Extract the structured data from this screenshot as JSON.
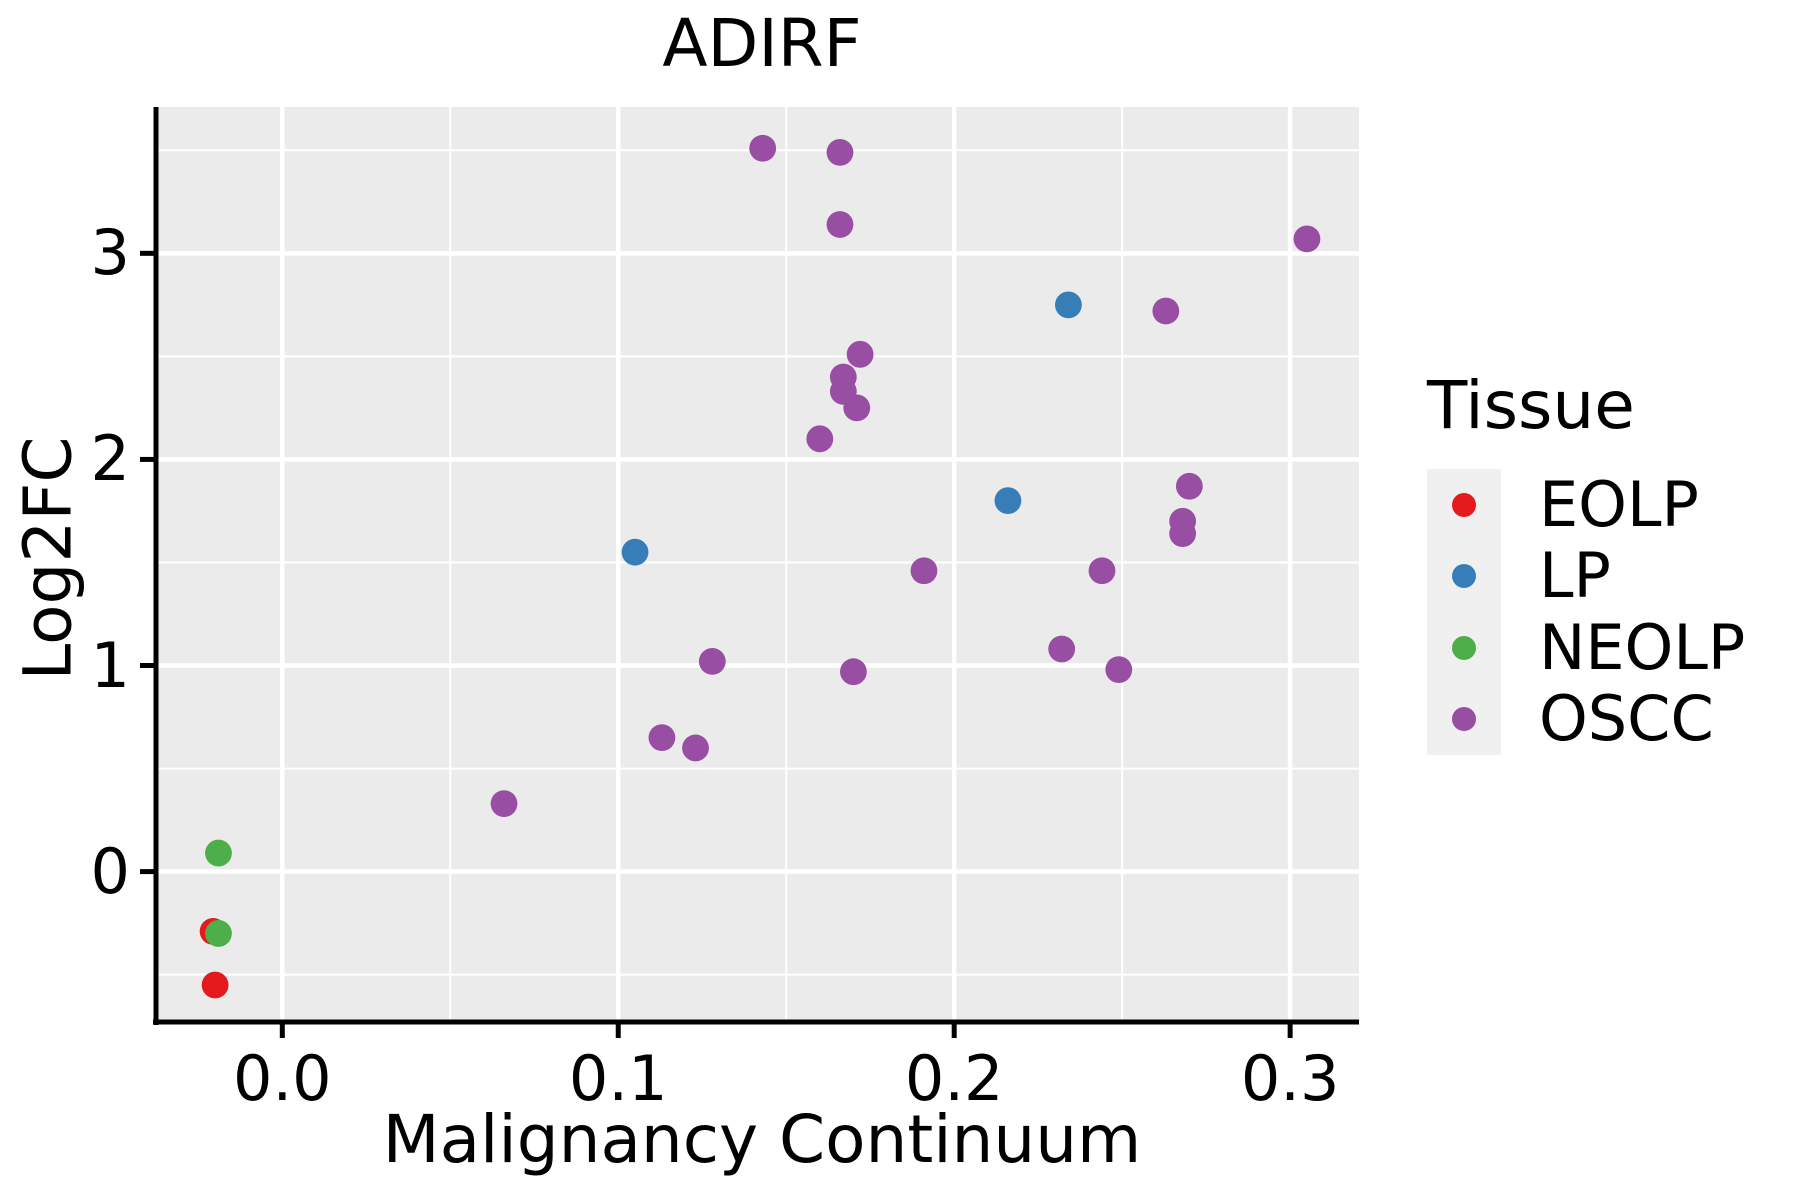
{
  "figure": {
    "title": "ADIRF",
    "background": "#ffffff"
  },
  "chart_data": {
    "type": "scatter",
    "title": "ADIRF",
    "xlabel": "Malignancy Continuum",
    "ylabel": "Log2FC",
    "xlim": [
      -0.037,
      0.3205
    ],
    "ylim": [
      -0.72,
      3.71
    ],
    "x_ticks": [
      0.0,
      0.1,
      0.2,
      0.3
    ],
    "x_tick_labels": [
      "0.0",
      "0.1",
      "0.2",
      "0.3"
    ],
    "y_ticks": [
      0,
      1,
      2,
      3
    ],
    "y_tick_labels": [
      "0",
      "1",
      "2",
      "3"
    ],
    "x_minor_ticks": [
      0.05,
      0.15,
      0.25
    ],
    "y_minor_ticks": [
      -0.5,
      0.5,
      1.5,
      2.5,
      3.5
    ],
    "grid": true,
    "plot_background": "#ebebeb",
    "gridline_color": "#ffffff",
    "axis_line_color": "#000000",
    "legend_position": "right",
    "point_radius": 13.4,
    "series": [
      {
        "name": "EOLP",
        "color": "#e41a1c",
        "points": [
          [
            -0.0206,
            -0.29
          ],
          [
            -0.02,
            -0.55
          ]
        ]
      },
      {
        "name": "LP",
        "color": "#377eb8",
        "points": [
          [
            0.105,
            1.55
          ],
          [
            0.216,
            1.8
          ],
          [
            0.234,
            2.75
          ]
        ]
      },
      {
        "name": "NEOLP",
        "color": "#4daf4a",
        "points": [
          [
            -0.019,
            0.09
          ],
          [
            -0.019,
            -0.3
          ]
        ]
      },
      {
        "name": "OSCC",
        "color": "#984ea3",
        "points": [
          [
            0.143,
            3.51
          ],
          [
            0.166,
            3.49
          ],
          [
            0.166,
            3.14
          ],
          [
            0.305,
            3.07
          ],
          [
            0.263,
            2.72
          ],
          [
            0.172,
            2.51
          ],
          [
            0.167,
            2.4
          ],
          [
            0.167,
            2.33
          ],
          [
            0.171,
            2.25
          ],
          [
            0.16,
            2.1
          ],
          [
            0.27,
            1.87
          ],
          [
            0.268,
            1.7
          ],
          [
            0.268,
            1.64
          ],
          [
            0.244,
            1.46
          ],
          [
            0.191,
            1.46
          ],
          [
            0.232,
            1.08
          ],
          [
            0.128,
            1.02
          ],
          [
            0.249,
            0.98
          ],
          [
            0.17,
            0.97
          ],
          [
            0.113,
            0.65
          ],
          [
            0.123,
            0.6
          ],
          [
            0.066,
            0.33
          ]
        ]
      }
    ]
  },
  "legend": {
    "title": "Tissue",
    "entries": [
      {
        "label": "EOLP",
        "color": "#e41a1c"
      },
      {
        "label": "LP",
        "color": "#377eb8"
      },
      {
        "label": "NEOLP",
        "color": "#4daf4a"
      },
      {
        "label": "OSCC",
        "color": "#984ea3"
      }
    ]
  }
}
